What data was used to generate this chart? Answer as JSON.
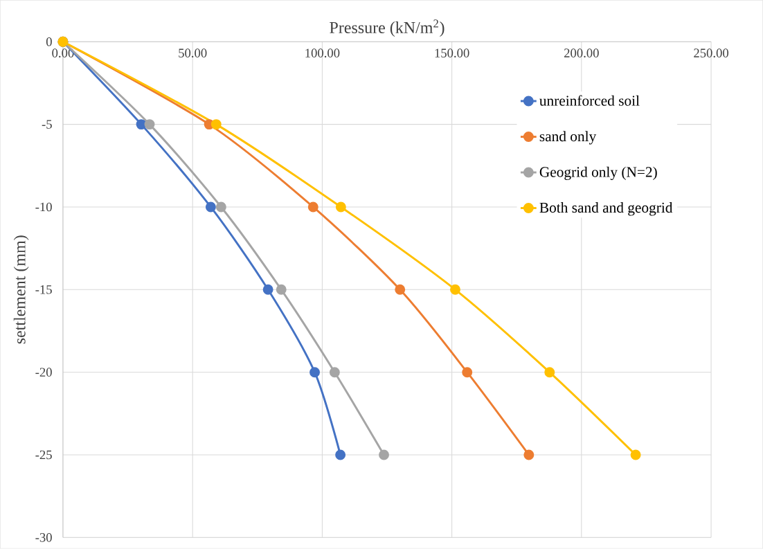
{
  "chart_data": {
    "type": "line",
    "xlabel": "Pressure (kN/m$^{2}$)",
    "ylabel": "settlement (mm)",
    "xlim": [
      0,
      250
    ],
    "ylim": [
      -30,
      0
    ],
    "xticks": [
      {
        "value": 0,
        "label": "0.00"
      },
      {
        "value": 50,
        "label": "50.00"
      },
      {
        "value": 100,
        "label": "100.00"
      },
      {
        "value": 150,
        "label": "150.00"
      },
      {
        "value": 200,
        "label": "200.00"
      },
      {
        "value": 250,
        "label": "250.00"
      }
    ],
    "yticks": [
      -30,
      -25,
      -20,
      -15,
      -10,
      -5,
      0
    ],
    "grid": true,
    "legend": "right",
    "marker": "circle",
    "line_style": "solid",
    "series": [
      {
        "name": "unreinforced soil",
        "color": "#4472c4",
        "x": [
          0,
          30.2,
          57.0,
          79.1,
          97.1,
          107.0
        ],
        "values": [
          0,
          -5,
          -10,
          -15,
          -20,
          -25
        ]
      },
      {
        "name": "sand only",
        "color": "#ed7d31",
        "x": [
          0,
          56.4,
          96.5,
          130.0,
          155.9,
          179.7
        ],
        "values": [
          0,
          -5,
          -10,
          -15,
          -20,
          -25
        ]
      },
      {
        "name": "Geogrid only (N=2)",
        "color": "#a5a5a5",
        "x": [
          0,
          33.4,
          61.0,
          84.2,
          104.8,
          123.8
        ],
        "values": [
          0,
          -5,
          -10,
          -15,
          -20,
          -25
        ]
      },
      {
        "name": "Both sand and geogrid",
        "color": "#ffc000",
        "x": [
          0,
          59.1,
          107.2,
          151.3,
          187.7,
          220.9
        ],
        "values": [
          0,
          -5,
          -10,
          -15,
          -20,
          -25
        ]
      }
    ]
  }
}
